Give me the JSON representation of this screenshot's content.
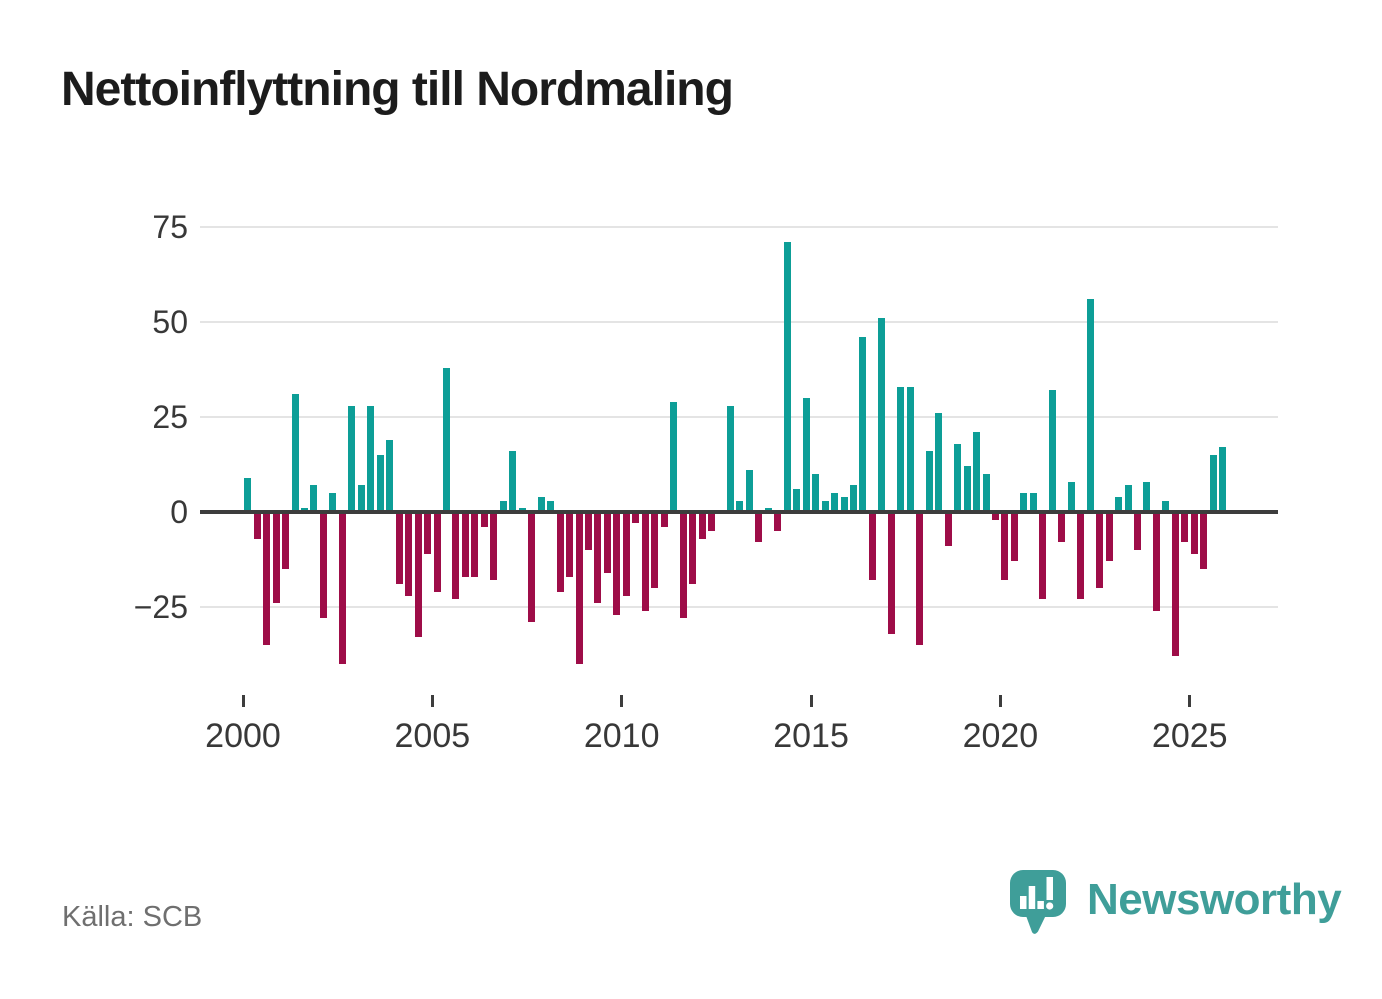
{
  "title": "Nettoinflyttning till Nordmaling",
  "source": "Källa: SCB",
  "logo": {
    "text": "Newsworthy"
  },
  "colors": {
    "positive": "#0d9e97",
    "negative": "#9e0d48",
    "logo_teal": "#3f9e99",
    "grid": "#e4e4e4",
    "zero_line": "#3d3d3d",
    "axis_text": "#383838",
    "source_text": "#6f6f6f",
    "title_text": "#1c1c1c"
  },
  "chart_data": {
    "type": "bar",
    "title": "Nettoinflyttning till Nordmaling",
    "xlabel": "",
    "ylabel": "",
    "grid": "horizontal",
    "legend": "none",
    "ylim": [
      -42,
      80
    ],
    "yticks": [
      75,
      50,
      25,
      0,
      -25
    ],
    "ytick_labels": [
      "75",
      "50",
      "25",
      "0",
      "−25"
    ],
    "xtick_labels": [
      "2000",
      "2005",
      "2010",
      "2015",
      "2020",
      "2025"
    ],
    "x": [
      "2000 Q1",
      "2000 Q2",
      "2000 Q3",
      "2000 Q4",
      "2001 Q1",
      "2001 Q2",
      "2001 Q3",
      "2001 Q4",
      "2002 Q1",
      "2002 Q2",
      "2002 Q3",
      "2002 Q4",
      "2003 Q1",
      "2003 Q2",
      "2003 Q3",
      "2003 Q4",
      "2004 Q1",
      "2004 Q2",
      "2004 Q3",
      "2004 Q4",
      "2005 Q1",
      "2005 Q2",
      "2005 Q3",
      "2005 Q4",
      "2006 Q1",
      "2006 Q2",
      "2006 Q3",
      "2006 Q4",
      "2007 Q1",
      "2007 Q2",
      "2007 Q3",
      "2007 Q4",
      "2008 Q1",
      "2008 Q2",
      "2008 Q3",
      "2008 Q4",
      "2009 Q1",
      "2009 Q2",
      "2009 Q3",
      "2009 Q4",
      "2010 Q1",
      "2010 Q2",
      "2010 Q3",
      "2010 Q4",
      "2011 Q1",
      "2011 Q2",
      "2011 Q3",
      "2011 Q4",
      "2012 Q1",
      "2012 Q2",
      "2012 Q3",
      "2012 Q4",
      "2013 Q1",
      "2013 Q2",
      "2013 Q3",
      "2013 Q4",
      "2014 Q1",
      "2014 Q2",
      "2014 Q3",
      "2014 Q4",
      "2015 Q1",
      "2015 Q2",
      "2015 Q3",
      "2015 Q4",
      "2016 Q1",
      "2016 Q2",
      "2016 Q3",
      "2016 Q4",
      "2017 Q1",
      "2017 Q2",
      "2017 Q3",
      "2017 Q4",
      "2018 Q1",
      "2018 Q2",
      "2018 Q3",
      "2018 Q4",
      "2019 Q1",
      "2019 Q2",
      "2019 Q3",
      "2019 Q4",
      "2020 Q1",
      "2020 Q2",
      "2020 Q3",
      "2020 Q4",
      "2021 Q1",
      "2021 Q2",
      "2021 Q3",
      "2021 Q4",
      "2022 Q1",
      "2022 Q2",
      "2022 Q3",
      "2022 Q4",
      "2023 Q1",
      "2023 Q2",
      "2023 Q3",
      "2023 Q4",
      "2024 Q1",
      "2024 Q2",
      "2024 Q3",
      "2024 Q4",
      "2025 Q1",
      "2025 Q2",
      "2025 Q3",
      "2025 Q4"
    ],
    "values": [
      9,
      -7,
      -35,
      -24,
      -15,
      31,
      1,
      7,
      -28,
      5,
      -40,
      28,
      7,
      28,
      15,
      19,
      -19,
      -22,
      -33,
      -11,
      -21,
      38,
      -23,
      -17,
      -17,
      -4,
      -18,
      3,
      16,
      1,
      -29,
      4,
      3,
      -21,
      -17,
      -40,
      -10,
      -24,
      -16,
      -27,
      -22,
      -3,
      -26,
      -20,
      -4,
      29,
      -28,
      -19,
      -7,
      -5,
      0,
      28,
      3,
      11,
      -8,
      1,
      -5,
      71,
      6,
      30,
      10,
      3,
      5,
      4,
      7,
      46,
      -18,
      51,
      -32,
      33,
      33,
      -35,
      16,
      26,
      -9,
      18,
      12,
      21,
      10,
      -2,
      -18,
      -13,
      5,
      5,
      -23,
      32,
      -8,
      8,
      -23,
      56,
      -20,
      -13,
      4,
      7,
      -10,
      8,
      -26,
      3,
      -38,
      -8,
      -11,
      -15,
      15,
      17
    ]
  }
}
